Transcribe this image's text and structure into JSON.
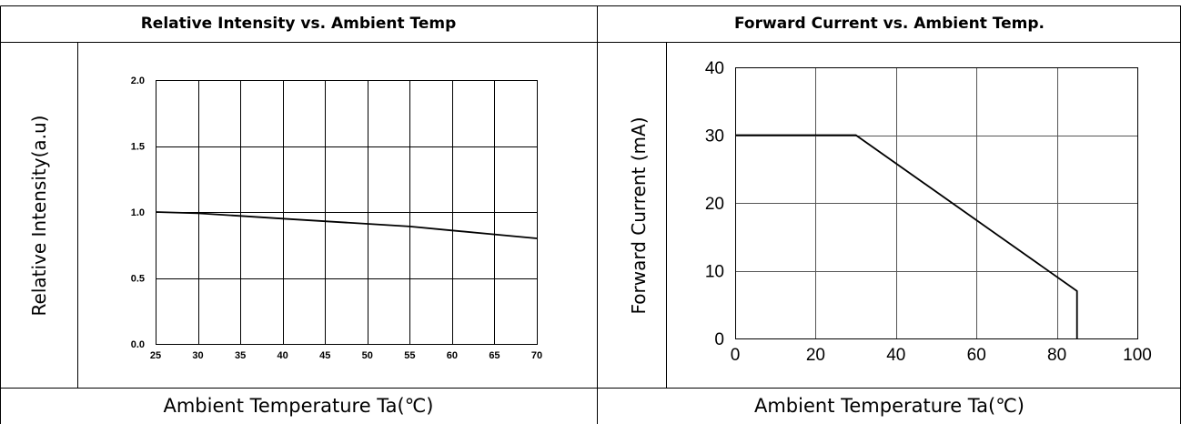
{
  "left_panel": {
    "title": "Relative Intensity vs. Ambient Temp",
    "footer": "Ambient Temperature Ta(℃)"
  },
  "right_panel": {
    "title": "Forward Current vs. Ambient Temp.",
    "footer": "Ambient Temperature Ta(℃)"
  },
  "chart_data": [
    {
      "type": "line",
      "title": "Relative Intensity vs. Ambient Temp",
      "xlabel": "Ambient Temperature Ta(℃)",
      "ylabel": "Relative Intensity(a.u)",
      "xlim": [
        25,
        70
      ],
      "ylim": [
        0,
        2.0
      ],
      "xticks": [
        25,
        30,
        35,
        40,
        45,
        50,
        55,
        60,
        65,
        70
      ],
      "yticks": [
        0.0,
        0.5,
        1.0,
        1.5,
        2.0
      ],
      "xtick_labels": [
        "25",
        "30",
        "35",
        "40",
        "45",
        "50",
        "55",
        "60",
        "65",
        "70"
      ],
      "ytick_labels": [
        "0.0",
        "0.5",
        "1.0",
        "1.5",
        "2.0"
      ],
      "grid": true,
      "line_color": "#000000",
      "series": [
        {
          "x": [
            25,
            30,
            35,
            40,
            45,
            50,
            55,
            60,
            65,
            70
          ],
          "y": [
            1.0,
            0.99,
            0.97,
            0.95,
            0.93,
            0.91,
            0.89,
            0.86,
            0.83,
            0.8
          ]
        }
      ]
    },
    {
      "type": "line",
      "title": "Forward Current vs. Ambient Temp.",
      "xlabel": "Ambient Temperature Ta(℃)",
      "ylabel": "Forward Current (mA)",
      "xlim": [
        0,
        100
      ],
      "ylim": [
        0,
        40
      ],
      "xticks": [
        0,
        20,
        40,
        60,
        80,
        100
      ],
      "yticks": [
        0,
        10,
        20,
        30,
        40
      ],
      "xtick_labels": [
        "0",
        "20",
        "40",
        "60",
        "80",
        "100"
      ],
      "ytick_labels": [
        "0",
        "10",
        "20",
        "30",
        "40"
      ],
      "grid": true,
      "line_color": "#000000",
      "series": [
        {
          "x": [
            0,
            30,
            85,
            85
          ],
          "y": [
            30,
            30,
            7,
            0
          ]
        }
      ]
    }
  ]
}
